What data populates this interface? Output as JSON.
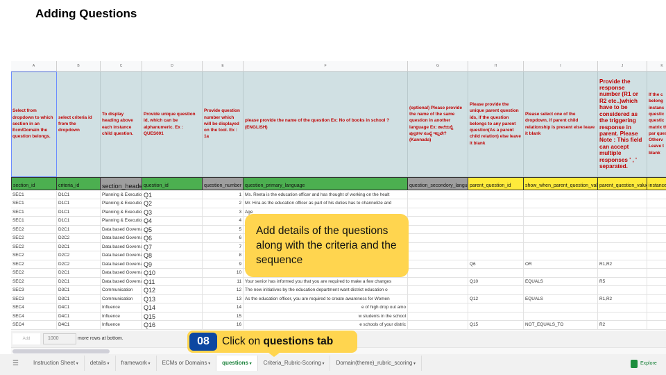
{
  "title": "Adding Questions",
  "colors": {
    "description_bg": "#d0e0e3",
    "description_text": "#c00000",
    "key_green": "#4caf50",
    "key_gray": "#9e9e9e",
    "key_yellow": "#ffeb3b",
    "callout": "#ffd54f",
    "step_badge": "#0d47a1",
    "active_tab": "#188038"
  },
  "columns": [
    {
      "letter": "A",
      "desc": "Select from dropdown to which section in an Ecm/Domain the question belongs.",
      "key": "section_id",
      "key_color": "green"
    },
    {
      "letter": "B",
      "desc": "select criteria id from the dropdown",
      "key": "criteria_id",
      "key_color": "green"
    },
    {
      "letter": "C",
      "desc": "To display heading above each instance child question.",
      "key": "section_header",
      "key_color": "gray"
    },
    {
      "letter": "D",
      "desc": "Provide unique question id, which can be alphanumeric. Ex : QUES001",
      "key": "question_id",
      "key_color": "green"
    },
    {
      "letter": "E",
      "desc": "Provide question number which will be displayed on the tool. Ex : 1a",
      "key": "question_number",
      "key_color": "gray"
    },
    {
      "letter": "F",
      "desc": "please provide the name of the question Ex: No of books in school ? (ENGLISH)",
      "key": "question_primary_language",
      "key_color": "green"
    },
    {
      "letter": "G",
      "desc": "(optional) Please provide the name of the same question in another language Ex: ಶಾಲೆಯಲ್ಲಿ ಪುಸ್ತಕಗಳ ಸಂಖ್ಯೆ ಇಲ್ಲವೇ? (Kannada)",
      "key": "question_secondory_language",
      "key_color": "gray"
    },
    {
      "letter": "H",
      "desc": "Please provide the unique parent question ids, if the question belongs to any parent question(As a parent child relation) else leave it blank",
      "key": "parent_question_id",
      "key_color": "yellow"
    },
    {
      "letter": "I",
      "desc": "Please select one of the dropdown, if parent child relationship is present else leave it blank",
      "key": "show_when_parent_question_value_is",
      "key_color": "yellow"
    },
    {
      "letter": "J",
      "desc": "Provide the response number (R1 or R2 etc..)which have to be considered as the triggering response in parent. Please Note : This field can accept multiple responses ' , ' separated.",
      "key": "parent_question_value",
      "key_color": "yellow"
    },
    {
      "letter": "K",
      "desc": "If the c belong instanc questic questic matrix the par questic Otherv Leave t blank",
      "key": "instance",
      "key_color": "yellow"
    }
  ],
  "rows": [
    [
      "SEC1",
      "D1C1",
      "Planning & Execution",
      "Q1",
      "1",
      "Ms. Reeta is the education officer and has thought of working on the healt",
      "",
      "",
      "",
      "",
      ""
    ],
    [
      "SEC1",
      "D1C1",
      "Planning & Execution",
      "Q2",
      "2",
      "Mr. Hira as the education officer as part of his duties has to channelize and",
      "",
      "",
      "",
      "",
      ""
    ],
    [
      "SEC1",
      "D1C1",
      "Planning & Execution",
      "Q3",
      "3",
      "Age",
      "",
      "",
      "",
      "",
      ""
    ],
    [
      "SEC1",
      "D1C1",
      "Planning & Execution",
      "Q4",
      "4",
      "",
      "",
      "",
      "",
      "",
      ""
    ],
    [
      "SEC2",
      "D2C1",
      "Data based Governance",
      "Q5",
      "5",
      "",
      "",
      "",
      "",
      "",
      ""
    ],
    [
      "SEC2",
      "D2C2",
      "Data based Governance",
      "Q6",
      "6",
      "",
      "",
      "",
      "",
      "",
      ""
    ],
    [
      "SEC2",
      "D2C1",
      "Data based Governance",
      "Q7",
      "7",
      "",
      "",
      "",
      "",
      "",
      ""
    ],
    [
      "SEC2",
      "D2C2",
      "Data based Governance",
      "Q8",
      "8",
      "",
      "",
      "",
      "",
      "",
      ""
    ],
    [
      "SEC2",
      "D2C2",
      "Data based Governance",
      "Q9",
      "9",
      "",
      "",
      "Q6",
      "OR",
      "R1,R2",
      ""
    ],
    [
      "SEC2",
      "D2C1",
      "Data based Governance",
      "Q10",
      "10",
      "",
      "",
      "",
      "",
      "",
      ""
    ],
    [
      "SEC2",
      "D2C1",
      "Data based Governance",
      "Q11",
      "11",
      "Your senior has informed you that you are required to make a few changes",
      "",
      "Q10",
      "EQUALS",
      "R5",
      ""
    ],
    [
      "SEC3",
      "D3C1",
      "Communication",
      "Q12",
      "12",
      "The new initiatives by the education department want district education o",
      "",
      "",
      "",
      "",
      ""
    ],
    [
      "SEC3",
      "D3C1",
      "Communication",
      "Q13",
      "13",
      "As the education officer, you are required to create awareness for Women",
      "",
      "Q12",
      "EQUALS",
      "R1,R2",
      ""
    ],
    [
      "SEC4",
      "D4C1",
      "Influence",
      "Q14",
      "14",
      "e of high drop out amo",
      "",
      "",
      "",
      "",
      ""
    ],
    [
      "SEC4",
      "D4C1",
      "Influence",
      "Q15",
      "15",
      "w students in the school",
      "",
      "",
      "",
      "",
      ""
    ],
    [
      "SEC4",
      "D4C1",
      "Influence",
      "Q16",
      "16",
      "e schools of your distric",
      "",
      "Q15",
      "NOT_EQUALS_TO",
      "R2",
      ""
    ]
  ],
  "add_rows": {
    "button": "Add",
    "count": "1000",
    "suffix": "more rows at bottom."
  },
  "tabs": [
    {
      "label": "Instruction Sheet",
      "active": false
    },
    {
      "label": "details",
      "active": false
    },
    {
      "label": "framework",
      "active": false
    },
    {
      "label": "ECMs or Domains",
      "active": false
    },
    {
      "label": "questions",
      "active": true
    },
    {
      "label": "Criteria_Rubric-Scoring",
      "active": false
    },
    {
      "label": "Domain(theme)_rubric_scoring",
      "active": false
    }
  ],
  "explore_label": "Explore",
  "callout1": "Add details of the questions along with the criteria and the sequence",
  "callout2": {
    "step": "08",
    "text_prefix": "Click on ",
    "text_bold": "questions tab"
  }
}
